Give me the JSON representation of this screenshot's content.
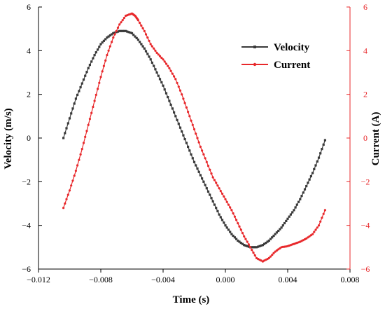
{
  "chart_data": {
    "type": "line",
    "title": "",
    "xlabel": "Time (s)",
    "ylabel": "Velocity (m/s)",
    "y2label": "Current (A)",
    "xlim": [
      -0.012,
      0.008
    ],
    "ylim": [
      -6,
      6
    ],
    "y2lim": [
      -6,
      6
    ],
    "xticks": [
      -0.012,
      -0.008,
      -0.004,
      0.0,
      0.004,
      0.008
    ],
    "xtick_labels": [
      "−0.012",
      "−0.008",
      "−0.004",
      "0.000",
      "0.004",
      "0.008"
    ],
    "yticks": [
      -6,
      -4,
      -2,
      0,
      2,
      4,
      6
    ],
    "ytick_labels": [
      "−6",
      "−4",
      "−2",
      "0",
      "2",
      "4",
      "6"
    ],
    "y2ticks": [
      -6,
      -4,
      -2,
      0,
      2,
      4,
      6
    ],
    "y2tick_labels": [
      "−6",
      "−4",
      "−2",
      "0",
      "2",
      "4",
      "6"
    ],
    "grid": false,
    "legend_position": "top-right",
    "colors": {
      "velocity": "#3a3a3a",
      "current": "#e8282b",
      "y2axis": "#e8282b"
    },
    "series": [
      {
        "name": "Velocity",
        "axis": "left",
        "x": [
          -0.0104,
          -0.01,
          -0.0096,
          -0.0092,
          -0.0088,
          -0.0084,
          -0.008,
          -0.0076,
          -0.0072,
          -0.0068,
          -0.0064,
          -0.006,
          -0.0056,
          -0.0052,
          -0.0048,
          -0.0044,
          -0.004,
          -0.0036,
          -0.0032,
          -0.0028,
          -0.0024,
          -0.002,
          -0.0016,
          -0.0012,
          -0.0008,
          -0.0004,
          0.0,
          0.0004,
          0.0008,
          0.0012,
          0.0016,
          0.002,
          0.0024,
          0.0028,
          0.0032,
          0.0036,
          0.004,
          0.0044,
          0.0048,
          0.0052,
          0.0056,
          0.006,
          0.0064
        ],
        "y": [
          0.0,
          0.9,
          1.8,
          2.5,
          3.2,
          3.8,
          4.3,
          4.6,
          4.8,
          4.9,
          4.9,
          4.8,
          4.5,
          4.1,
          3.6,
          3.0,
          2.4,
          1.7,
          1.0,
          0.3,
          -0.4,
          -1.1,
          -1.7,
          -2.3,
          -2.9,
          -3.5,
          -4.0,
          -4.4,
          -4.7,
          -4.9,
          -5.0,
          -5.0,
          -4.9,
          -4.7,
          -4.4,
          -4.1,
          -3.7,
          -3.3,
          -2.8,
          -2.2,
          -1.6,
          -0.9,
          -0.1
        ]
      },
      {
        "name": "Current",
        "axis": "right",
        "x": [
          -0.0104,
          -0.01,
          -0.0096,
          -0.0092,
          -0.0088,
          -0.0084,
          -0.008,
          -0.0076,
          -0.0072,
          -0.0068,
          -0.0064,
          -0.006,
          -0.0058,
          -0.0056,
          -0.0052,
          -0.0048,
          -0.0044,
          -0.004,
          -0.0036,
          -0.0032,
          -0.0028,
          -0.0024,
          -0.002,
          -0.0016,
          -0.0012,
          -0.0008,
          -0.0004,
          0.0,
          0.0004,
          0.0008,
          0.0012,
          0.0016,
          0.002,
          0.0024,
          0.0028,
          0.0032,
          0.0036,
          0.004,
          0.0044,
          0.0048,
          0.0052,
          0.0056,
          0.006,
          0.0064
        ],
        "y": [
          -3.2,
          -2.4,
          -1.5,
          -0.5,
          0.6,
          1.7,
          2.8,
          3.8,
          4.6,
          5.2,
          5.6,
          5.7,
          5.6,
          5.4,
          4.9,
          4.3,
          3.9,
          3.6,
          3.2,
          2.7,
          2.0,
          1.2,
          0.4,
          -0.4,
          -1.1,
          -1.8,
          -2.3,
          -2.8,
          -3.3,
          -3.9,
          -4.5,
          -5.0,
          -5.5,
          -5.65,
          -5.5,
          -5.2,
          -5.0,
          -4.95,
          -4.85,
          -4.75,
          -4.6,
          -4.4,
          -4.0,
          -3.3
        ]
      }
    ]
  }
}
